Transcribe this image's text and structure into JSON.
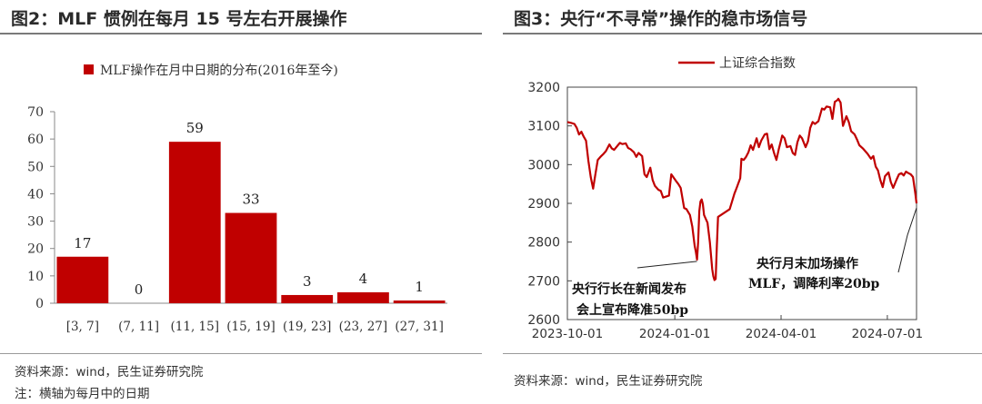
{
  "left": {
    "title": "图2：MLF 惯例在每月 15 号左右开展操作",
    "source": "资料来源：wind，民生证券研究院",
    "note": "注：横轴为每月中的日期"
  },
  "right": {
    "title": "图3：央行“不寻常”操作的稳市场信号",
    "source": "资料来源：wind，民生证券研究院"
  },
  "chart_data": [
    {
      "type": "bar",
      "legend": "MLF操作在月中日期的分布(2016年至今)",
      "categories": [
        "[3, 7]",
        "(7, 11]",
        "(11, 15]",
        "(15, 19]",
        "(19, 23]",
        "(23, 27]",
        "(27, 31]"
      ],
      "values": [
        17,
        0,
        59,
        33,
        3,
        4,
        1
      ],
      "data_labels": [
        "17",
        "0",
        "59",
        "33",
        "3",
        "4",
        "1"
      ],
      "ylim": [
        0,
        70
      ],
      "yticks": [
        "0",
        "10",
        "20",
        "30",
        "40",
        "50",
        "60",
        "70"
      ],
      "legend_position": "top-center",
      "color": "#c00000"
    },
    {
      "type": "line",
      "series": [
        {
          "name": "上证综合指数",
          "color": "#c00000",
          "points": [
            [
              "2023-10-01",
              3110
            ],
            [
              "2023-10-04",
              3108
            ],
            [
              "2023-10-07",
              3105
            ],
            [
              "2023-10-09",
              3095
            ],
            [
              "2023-10-11",
              3078
            ],
            [
              "2023-10-13",
              3085
            ],
            [
              "2023-10-15",
              3072
            ],
            [
              "2023-10-17",
              3062
            ],
            [
              "2023-10-19",
              3010
            ],
            [
              "2023-10-21",
              2968
            ],
            [
              "2023-10-23",
              2938
            ],
            [
              "2023-10-25",
              2975
            ],
            [
              "2023-10-27",
              3012
            ],
            [
              "2023-10-30",
              3022
            ],
            [
              "2023-11-01",
              3028
            ],
            [
              "2023-11-03",
              3035
            ],
            [
              "2023-11-06",
              3052
            ],
            [
              "2023-11-08",
              3042
            ],
            [
              "2023-11-10",
              3038
            ],
            [
              "2023-11-13",
              3049
            ],
            [
              "2023-11-15",
              3056
            ],
            [
              "2023-11-17",
              3053
            ],
            [
              "2023-11-20",
              3055
            ],
            [
              "2023-11-22",
              3043
            ],
            [
              "2023-11-24",
              3040
            ],
            [
              "2023-11-27",
              3032
            ],
            [
              "2023-11-29",
              3020
            ],
            [
              "2023-12-01",
              3030
            ],
            [
              "2023-12-04",
              3022
            ],
            [
              "2023-12-06",
              2975
            ],
            [
              "2023-12-08",
              2968
            ],
            [
              "2023-12-11",
              2992
            ],
            [
              "2023-12-13",
              2960
            ],
            [
              "2023-12-15",
              2945
            ],
            [
              "2023-12-18",
              2935
            ],
            [
              "2023-12-20",
              2932
            ],
            [
              "2023-12-22",
              2915
            ],
            [
              "2023-12-25",
              2918
            ],
            [
              "2023-12-27",
              2920
            ],
            [
              "2023-12-29",
              2975
            ],
            [
              "2024-01-02",
              2958
            ],
            [
              "2024-01-04",
              2950
            ],
            [
              "2024-01-06",
              2940
            ],
            [
              "2024-01-09",
              2888
            ],
            [
              "2024-01-11",
              2885
            ],
            [
              "2024-01-14",
              2870
            ],
            [
              "2024-01-16",
              2840
            ],
            [
              "2024-01-18",
              2790
            ],
            [
              "2024-01-19",
              2775
            ],
            [
              "2024-01-20",
              2755
            ],
            [
              "2024-01-21",
              2800
            ],
            [
              "2024-01-22",
              2880
            ],
            [
              "2024-01-23",
              2905
            ],
            [
              "2024-01-24",
              2910
            ],
            [
              "2024-01-25",
              2898
            ],
            [
              "2024-01-26",
              2870
            ],
            [
              "2024-01-29",
              2850
            ],
            [
              "2024-01-31",
              2800
            ],
            [
              "2024-02-02",
              2730
            ],
            [
              "2024-02-03",
              2712
            ],
            [
              "2024-02-04",
              2702
            ],
            [
              "2024-02-05",
              2705
            ],
            [
              "2024-02-06",
              2790
            ],
            [
              "2024-02-07",
              2865
            ],
            [
              "2024-02-12",
              2875
            ],
            [
              "2024-02-17",
              2885
            ],
            [
              "2024-02-19",
              2905
            ],
            [
              "2024-02-21",
              2925
            ],
            [
              "2024-02-23",
              2940
            ],
            [
              "2024-02-26",
              2965
            ],
            [
              "2024-02-27",
              3015
            ],
            [
              "2024-02-29",
              3012
            ],
            [
              "2024-03-02",
              3020
            ],
            [
              "2024-03-04",
              3032
            ],
            [
              "2024-03-06",
              3050
            ],
            [
              "2024-03-08",
              3038
            ],
            [
              "2024-03-11",
              3068
            ],
            [
              "2024-03-13",
              3045
            ],
            [
              "2024-03-15",
              3062
            ],
            [
              "2024-03-18",
              3078
            ],
            [
              "2024-03-20",
              3080
            ],
            [
              "2024-03-22",
              3040
            ],
            [
              "2024-03-24",
              3052
            ],
            [
              "2024-03-26",
              3030
            ],
            [
              "2024-03-28",
              3012
            ],
            [
              "2024-03-30",
              3040
            ],
            [
              "2024-04-02",
              3075
            ],
            [
              "2024-04-04",
              3068
            ],
            [
              "2024-04-06",
              3045
            ],
            [
              "2024-04-09",
              3048
            ],
            [
              "2024-04-11",
              3030
            ],
            [
              "2024-04-13",
              3025
            ],
            [
              "2024-04-15",
              3058
            ],
            [
              "2024-04-17",
              3075
            ],
            [
              "2024-04-19",
              3068
            ],
            [
              "2024-04-22",
              3045
            ],
            [
              "2024-04-24",
              3060
            ],
            [
              "2024-04-26",
              3095
            ],
            [
              "2024-04-28",
              3110
            ],
            [
              "2024-04-30",
              3105
            ],
            [
              "2024-05-03",
              3112
            ],
            [
              "2024-05-06",
              3145
            ],
            [
              "2024-05-08",
              3142
            ],
            [
              "2024-05-10",
              3150
            ],
            [
              "2024-05-13",
              3148
            ],
            [
              "2024-05-15",
              3118
            ],
            [
              "2024-05-17",
              3162
            ],
            [
              "2024-05-19",
              3166
            ],
            [
              "2024-05-20",
              3170
            ],
            [
              "2024-05-22",
              3160
            ],
            [
              "2024-05-24",
              3100
            ],
            [
              "2024-05-27",
              3125
            ],
            [
              "2024-05-29",
              3110
            ],
            [
              "2024-05-31",
              3086
            ],
            [
              "2024-06-03",
              3078
            ],
            [
              "2024-06-05",
              3065
            ],
            [
              "2024-06-07",
              3050
            ],
            [
              "2024-06-10",
              3042
            ],
            [
              "2024-06-12",
              3035
            ],
            [
              "2024-06-14",
              3028
            ],
            [
              "2024-06-17",
              3015
            ],
            [
              "2024-06-19",
              3022
            ],
            [
              "2024-06-21",
              2995
            ],
            [
              "2024-06-23",
              2985
            ],
            [
              "2024-06-25",
              2960
            ],
            [
              "2024-06-27",
              2942
            ],
            [
              "2024-06-29",
              2970
            ],
            [
              "2024-07-02",
              2980
            ],
            [
              "2024-07-04",
              2955
            ],
            [
              "2024-07-06",
              2940
            ],
            [
              "2024-07-09",
              2962
            ],
            [
              "2024-07-11",
              2975
            ],
            [
              "2024-07-13",
              2978
            ],
            [
              "2024-07-15",
              2972
            ],
            [
              "2024-07-17",
              2982
            ],
            [
              "2024-07-19",
              2978
            ],
            [
              "2024-07-21",
              2975
            ],
            [
              "2024-07-23",
              2968
            ],
            [
              "2024-07-25",
              2925
            ],
            [
              "2024-07-26",
              2900
            ]
          ]
        }
      ],
      "xlim": [
        "2023-10-01",
        "2024-07-26"
      ],
      "ylim": [
        2600,
        3200
      ],
      "yticks": [
        "2600",
        "2700",
        "2800",
        "2900",
        "3000",
        "3100",
        "3200"
      ],
      "xticks": [
        "2023-10-01",
        "2024-01-01",
        "2024-04-01",
        "2024-07-01"
      ],
      "legend_position": "top-center",
      "annotations": [
        {
          "lines": [
            "央行行长在新闻发布",
            "会上宣布降准50bp"
          ],
          "points_to": [
            "2024-01-20",
            2755
          ]
        },
        {
          "lines": [
            "央行月末加场操作",
            "MLF，调降利率20bp"
          ],
          "points_to": [
            "2024-07-26",
            2900
          ]
        }
      ]
    }
  ]
}
